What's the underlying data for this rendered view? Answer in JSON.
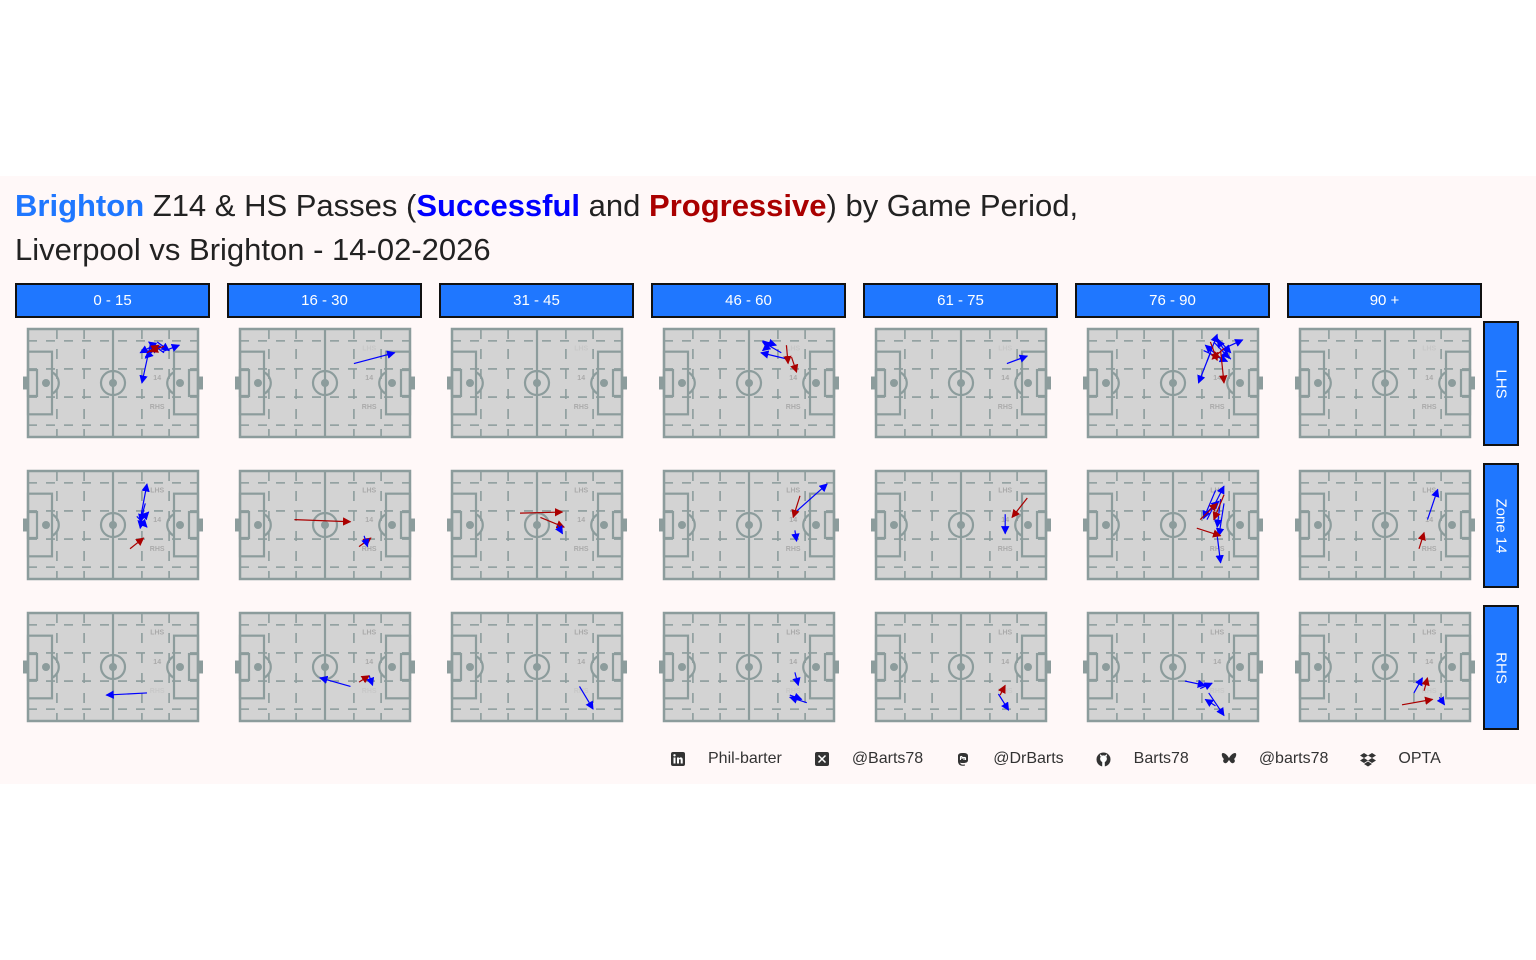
{
  "title": {
    "line1": {
      "team": "Brighton",
      "mid1": " Z14 & HS Passes (",
      "successful": "Successful",
      "mid2": " and ",
      "progressive": "Progressive",
      "end": ") by Game Period,"
    },
    "line2": "Liverpool vs Brighton - 14-02-2026"
  },
  "colors": {
    "team": "#1f77ff",
    "successful": "#0000ff",
    "progressive": "#aa0000",
    "strip": "#1f77ff",
    "pitch": "#d3d3d3",
    "lines": "#8c9c9c"
  },
  "columns": [
    "0 - 15",
    "16 - 30",
    "31 - 45",
    "46 - 60",
    "61 - 75",
    "76 - 90",
    "90 +"
  ],
  "rows": [
    "LHS",
    "Zone 14",
    "RHS"
  ],
  "pitch_labels": {
    "lhs": "LHS",
    "z14": "14",
    "rhs": "RHS"
  },
  "footer": [
    {
      "icon": "linkedin-icon",
      "text": "Phil-barter"
    },
    {
      "icon": "x-twitter-icon",
      "text": "@Barts78"
    },
    {
      "icon": "mastodon-icon",
      "text": "@DrBarts"
    },
    {
      "icon": "github-icon",
      "text": "Barts78"
    },
    {
      "icon": "bluesky-icon",
      "text": "@barts78"
    },
    {
      "icon": "dropbox-icon",
      "text": "OPTA"
    }
  ],
  "chart_data": {
    "type": "scatter",
    "mark": "arrow",
    "pitch": {
      "length": 100,
      "width": 100
    },
    "facet_cols": [
      "0 - 15",
      "16 - 30",
      "31 - 45",
      "46 - 60",
      "61 - 75",
      "76 - 90",
      "90 +"
    ],
    "facet_rows": [
      "LHS",
      "Zone 14",
      "RHS"
    ],
    "legend": {
      "Successful": "#0000ff",
      "Progressive": "#aa0000"
    },
    "passes": [
      {
        "period": "0 - 15",
        "zone": "LHS",
        "type": "Successful",
        "x": [
          71,
          78
        ],
        "y": [
          80,
          84
        ]
      },
      {
        "period": "0 - 15",
        "zone": "LHS",
        "type": "Successful",
        "x": [
          76,
          83
        ],
        "y": [
          88,
          80
        ]
      },
      {
        "period": "0 - 15",
        "zone": "LHS",
        "type": "Successful",
        "x": [
          73,
          66
        ],
        "y": [
          84,
          78
        ]
      },
      {
        "period": "0 - 15",
        "zone": "LHS",
        "type": "Successful",
        "x": [
          80,
          71
        ],
        "y": [
          78,
          88
        ]
      },
      {
        "period": "0 - 15",
        "zone": "LHS",
        "type": "Successful",
        "x": [
          69,
          76
        ],
        "y": [
          74,
          85
        ]
      },
      {
        "period": "0 - 15",
        "zone": "LHS",
        "type": "Successful",
        "x": [
          79,
          89
        ],
        "y": [
          79,
          85
        ]
      },
      {
        "period": "0 - 15",
        "zone": "LHS",
        "type": "Successful",
        "x": [
          77,
          69
        ],
        "y": [
          85,
          73
        ]
      },
      {
        "period": "0 - 15",
        "zone": "LHS",
        "type": "Successful",
        "x": [
          72,
          67
        ],
        "y": [
          86,
          50
        ]
      },
      {
        "period": "0 - 15",
        "zone": "LHS",
        "type": "Progressive",
        "x": [
          70,
          77
        ],
        "y": [
          78,
          85
        ]
      },
      {
        "period": "0 - 15",
        "zone": "LHS",
        "type": "Progressive",
        "x": [
          80,
          72
        ],
        "y": [
          84,
          79
        ]
      },
      {
        "period": "0 - 15",
        "zone": "Zone 14",
        "type": "Successful",
        "x": [
          66,
          70
        ],
        "y": [
          55,
          88
        ]
      },
      {
        "period": "0 - 15",
        "zone": "Zone 14",
        "type": "Successful",
        "x": [
          69,
          66
        ],
        "y": [
          70,
          53
        ]
      },
      {
        "period": "0 - 15",
        "zone": "Zone 14",
        "type": "Successful",
        "x": [
          65,
          71
        ],
        "y": [
          52,
          62
        ]
      },
      {
        "period": "0 - 15",
        "zone": "Zone 14",
        "type": "Successful",
        "x": [
          68,
          66
        ],
        "y": [
          64,
          47
        ]
      },
      {
        "period": "0 - 15",
        "zone": "Zone 14",
        "type": "Successful",
        "x": [
          64,
          70
        ],
        "y": [
          58,
          48
        ]
      },
      {
        "period": "0 - 15",
        "zone": "Zone 14",
        "type": "Progressive",
        "x": [
          60,
          68
        ],
        "y": [
          28,
          38
        ]
      },
      {
        "period": "0 - 15",
        "zone": "RHS",
        "type": "Successful",
        "x": [
          70,
          46
        ],
        "y": [
          26,
          24
        ]
      },
      {
        "period": "16 - 30",
        "zone": "LHS",
        "type": "Successful",
        "x": [
          67,
          91
        ],
        "y": [
          68,
          78
        ]
      },
      {
        "period": "16 - 30",
        "zone": "Zone 14",
        "type": "Progressive",
        "x": [
          32,
          65
        ],
        "y": [
          55,
          53
        ]
      },
      {
        "period": "16 - 30",
        "zone": "Zone 14",
        "type": "Progressive",
        "x": [
          70,
          77
        ],
        "y": [
          30,
          38
        ]
      },
      {
        "period": "16 - 30",
        "zone": "Zone 14",
        "type": "Successful",
        "x": [
          73,
          75
        ],
        "y": [
          40,
          30
        ]
      },
      {
        "period": "16 - 30",
        "zone": "RHS",
        "type": "Successful",
        "x": [
          65,
          47
        ],
        "y": [
          32,
          40
        ]
      },
      {
        "period": "16 - 30",
        "zone": "RHS",
        "type": "Progressive",
        "x": [
          70,
          76
        ],
        "y": [
          36,
          42
        ]
      },
      {
        "period": "16 - 30",
        "zone": "RHS",
        "type": "Successful",
        "x": [
          76,
          78
        ],
        "y": [
          42,
          33
        ]
      },
      {
        "period": "31 - 45",
        "zone": "Zone 14",
        "type": "Progressive",
        "x": [
          40,
          65
        ],
        "y": [
          61,
          62
        ]
      },
      {
        "period": "31 - 45",
        "zone": "Zone 14",
        "type": "Progressive",
        "x": [
          52,
          66
        ],
        "y": [
          57,
          48
        ]
      },
      {
        "period": "31 - 45",
        "zone": "Zone 14",
        "type": "Successful",
        "x": [
          62,
          65
        ],
        "y": [
          50,
          42
        ]
      },
      {
        "period": "31 - 45",
        "zone": "RHS",
        "type": "Successful",
        "x": [
          75,
          83
        ],
        "y": [
          32,
          11
        ]
      },
      {
        "period": "46 - 60",
        "zone": "LHS",
        "type": "Successful",
        "x": [
          73,
          57
        ],
        "y": [
          72,
          78
        ]
      },
      {
        "period": "46 - 60",
        "zone": "LHS",
        "type": "Successful",
        "x": [
          69,
          58
        ],
        "y": [
          78,
          88
        ]
      },
      {
        "period": "46 - 60",
        "zone": "LHS",
        "type": "Successful",
        "x": [
          58,
          66
        ],
        "y": [
          89,
          85
        ]
      },
      {
        "period": "46 - 60",
        "zone": "LHS",
        "type": "Successful",
        "x": [
          62,
          58
        ],
        "y": [
          85,
          80
        ]
      },
      {
        "period": "46 - 60",
        "zone": "LHS",
        "type": "Progressive",
        "x": [
          72,
          73
        ],
        "y": [
          85,
          68
        ]
      },
      {
        "period": "46 - 60",
        "zone": "LHS",
        "type": "Progressive",
        "x": [
          75,
          78
        ],
        "y": [
          74,
          60
        ]
      },
      {
        "period": "46 - 60",
        "zone": "Zone 14",
        "type": "Successful",
        "x": [
          76,
          96
        ],
        "y": [
          60,
          88
        ]
      },
      {
        "period": "46 - 60",
        "zone": "Zone 14",
        "type": "Progressive",
        "x": [
          80,
          76
        ],
        "y": [
          77,
          57
        ]
      },
      {
        "period": "46 - 60",
        "zone": "Zone 14",
        "type": "Successful",
        "x": [
          77,
          78
        ],
        "y": [
          45,
          35
        ]
      },
      {
        "period": "46 - 60",
        "zone": "RHS",
        "type": "Successful",
        "x": [
          77,
          79
        ],
        "y": [
          45,
          33
        ]
      },
      {
        "period": "46 - 60",
        "zone": "RHS",
        "type": "Successful",
        "x": [
          74,
          81
        ],
        "y": [
          24,
          20
        ]
      },
      {
        "period": "46 - 60",
        "zone": "RHS",
        "type": "Successful",
        "x": [
          84,
          74
        ],
        "y": [
          17,
          22
        ]
      },
      {
        "period": "61 - 75",
        "zone": "LHS",
        "type": "Successful",
        "x": [
          77,
          89
        ],
        "y": [
          68,
          75
        ]
      },
      {
        "period": "61 - 75",
        "zone": "Zone 14",
        "type": "Progressive",
        "x": [
          89,
          80
        ],
        "y": [
          75,
          57
        ]
      },
      {
        "period": "61 - 75",
        "zone": "Zone 14",
        "type": "Successful",
        "x": [
          76,
          76
        ],
        "y": [
          60,
          42
        ]
      },
      {
        "period": "61 - 75",
        "zone": "RHS",
        "type": "Successful",
        "x": [
          72,
          78
        ],
        "y": [
          25,
          10
        ]
      },
      {
        "period": "61 - 75",
        "zone": "RHS",
        "type": "Progressive",
        "x": [
          73,
          76
        ],
        "y": [
          24,
          33
        ]
      },
      {
        "period": "76 - 90",
        "zone": "LHS",
        "type": "Successful",
        "x": [
          70,
          76
        ],
        "y": [
          70,
          95
        ]
      },
      {
        "period": "76 - 90",
        "zone": "LHS",
        "type": "Successful",
        "x": [
          75,
          84
        ],
        "y": [
          93,
          78
        ]
      },
      {
        "period": "76 - 90",
        "zone": "LHS",
        "type": "Successful",
        "x": [
          80,
          91
        ],
        "y": [
          82,
          90
        ]
      },
      {
        "period": "76 - 90",
        "zone": "LHS",
        "type": "Successful",
        "x": [
          72,
          65
        ],
        "y": [
          78,
          50
        ]
      },
      {
        "period": "76 - 90",
        "zone": "LHS",
        "type": "Successful",
        "x": [
          78,
          69
        ],
        "y": [
          73,
          85
        ]
      },
      {
        "period": "76 - 90",
        "zone": "LHS",
        "type": "Successful",
        "x": [
          68,
          82
        ],
        "y": [
          80,
          70
        ]
      },
      {
        "period": "76 - 90",
        "zone": "LHS",
        "type": "Successful",
        "x": [
          74,
          83
        ],
        "y": [
          88,
          73
        ]
      },
      {
        "period": "76 - 90",
        "zone": "LHS",
        "type": "Successful",
        "x": [
          84,
          76
        ],
        "y": [
          72,
          90
        ]
      },
      {
        "period": "76 - 90",
        "zone": "LHS",
        "type": "Progressive",
        "x": [
          78,
          80
        ],
        "y": [
          80,
          50
        ]
      },
      {
        "period": "76 - 90",
        "zone": "LHS",
        "type": "Progressive",
        "x": [
          72,
          76
        ],
        "y": [
          88,
          71
        ]
      },
      {
        "period": "76 - 90",
        "zone": "LHS",
        "type": "Progressive",
        "x": [
          80,
          73
        ],
        "y": [
          82,
          72
        ]
      },
      {
        "period": "76 - 90",
        "zone": "Zone 14",
        "type": "Successful",
        "x": [
          70,
          80
        ],
        "y": [
          55,
          86
        ]
      },
      {
        "period": "76 - 90",
        "zone": "Zone 14",
        "type": "Successful",
        "x": [
          75,
          68
        ],
        "y": [
          82,
          56
        ]
      },
      {
        "period": "76 - 90",
        "zone": "Zone 14",
        "type": "Successful",
        "x": [
          78,
          76
        ],
        "y": [
          74,
          48
        ]
      },
      {
        "period": "76 - 90",
        "zone": "Zone 14",
        "type": "Successful",
        "x": [
          80,
          77
        ],
        "y": [
          70,
          40
        ]
      },
      {
        "period": "76 - 90",
        "zone": "Zone 14",
        "type": "Successful",
        "x": [
          76,
          78
        ],
        "y": [
          40,
          15
        ]
      },
      {
        "period": "76 - 90",
        "zone": "Zone 14",
        "type": "Successful",
        "x": [
          70,
          77
        ],
        "y": [
          62,
          72
        ]
      },
      {
        "period": "76 - 90",
        "zone": "Zone 14",
        "type": "Progressive",
        "x": [
          64,
          78
        ],
        "y": [
          47,
          40
        ]
      },
      {
        "period": "76 - 90",
        "zone": "Zone 14",
        "type": "Progressive",
        "x": [
          80,
          74
        ],
        "y": [
          78,
          55
        ]
      },
      {
        "period": "76 - 90",
        "zone": "Zone 14",
        "type": "Progressive",
        "x": [
          66,
          76
        ],
        "y": [
          55,
          70
        ]
      },
      {
        "period": "76 - 90",
        "zone": "RHS",
        "type": "Successful",
        "x": [
          57,
          69
        ],
        "y": [
          37,
          33
        ]
      },
      {
        "period": "76 - 90",
        "zone": "RHS",
        "type": "Successful",
        "x": [
          66,
          73
        ],
        "y": [
          30,
          35
        ]
      },
      {
        "period": "76 - 90",
        "zone": "RHS",
        "type": "Successful",
        "x": [
          71,
          80
        ],
        "y": [
          26,
          5
        ]
      },
      {
        "period": "76 - 90",
        "zone": "RHS",
        "type": "Successful",
        "x": [
          75,
          69
        ],
        "y": [
          14,
          20
        ]
      },
      {
        "period": "90 +",
        "zone": "Zone 14",
        "type": "Successful",
        "x": [
          75,
          81
        ],
        "y": [
          55,
          83
        ]
      },
      {
        "period": "90 +",
        "zone": "Zone 14",
        "type": "Progressive",
        "x": [
          70,
          73
        ],
        "y": [
          28,
          43
        ]
      },
      {
        "period": "90 +",
        "zone": "RHS",
        "type": "Successful",
        "x": [
          67,
          72
        ],
        "y": [
          26,
          40
        ]
      },
      {
        "period": "90 +",
        "zone": "RHS",
        "type": "Progressive",
        "x": [
          73,
          75
        ],
        "y": [
          28,
          40
        ]
      },
      {
        "period": "90 +",
        "zone": "RHS",
        "type": "Progressive",
        "x": [
          60,
          78
        ],
        "y": [
          15,
          20
        ]
      },
      {
        "period": "90 +",
        "zone": "RHS",
        "type": "Successful",
        "x": [
          82,
          85
        ],
        "y": [
          22,
          15
        ]
      }
    ]
  }
}
